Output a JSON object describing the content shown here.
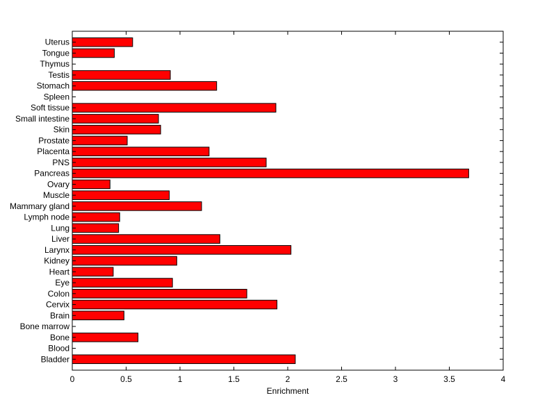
{
  "chart_data": {
    "type": "bar",
    "orientation": "horizontal",
    "title": "",
    "xlabel": "Enrichment",
    "ylabel": "",
    "xlim": [
      0,
      4
    ],
    "xticks": [
      0,
      0.5,
      1,
      1.5,
      2,
      2.5,
      3,
      3.5,
      4
    ],
    "xtick_labels": [
      "0",
      "0.5",
      "1",
      "1.5",
      "2",
      "2.5",
      "3",
      "3.5",
      "4"
    ],
    "grid": false,
    "legend": "none",
    "bar_color": "#ff0000",
    "categories": [
      "Bladder",
      "Blood",
      "Bone",
      "Bone marrow",
      "Brain",
      "Cervix",
      "Colon",
      "Eye",
      "Heart",
      "Kidney",
      "Larynx",
      "Liver",
      "Lung",
      "Lymph node",
      "Mammary gland",
      "Muscle",
      "Ovary",
      "Pancreas",
      "PNS",
      "Placenta",
      "Prostate",
      "Skin",
      "Small intestine",
      "Soft tissue",
      "Spleen",
      "Stomach",
      "Testis",
      "Thymus",
      "Tongue",
      "Uterus"
    ],
    "values": [
      2.07,
      0,
      0.61,
      0,
      0.48,
      1.9,
      1.62,
      0.93,
      0.38,
      0.97,
      2.03,
      1.37,
      0.43,
      0.44,
      1.2,
      0.9,
      0.35,
      3.68,
      1.8,
      1.27,
      0.51,
      0.82,
      0.8,
      1.89,
      0,
      1.34,
      0.91,
      0,
      0.39,
      0.56
    ]
  }
}
